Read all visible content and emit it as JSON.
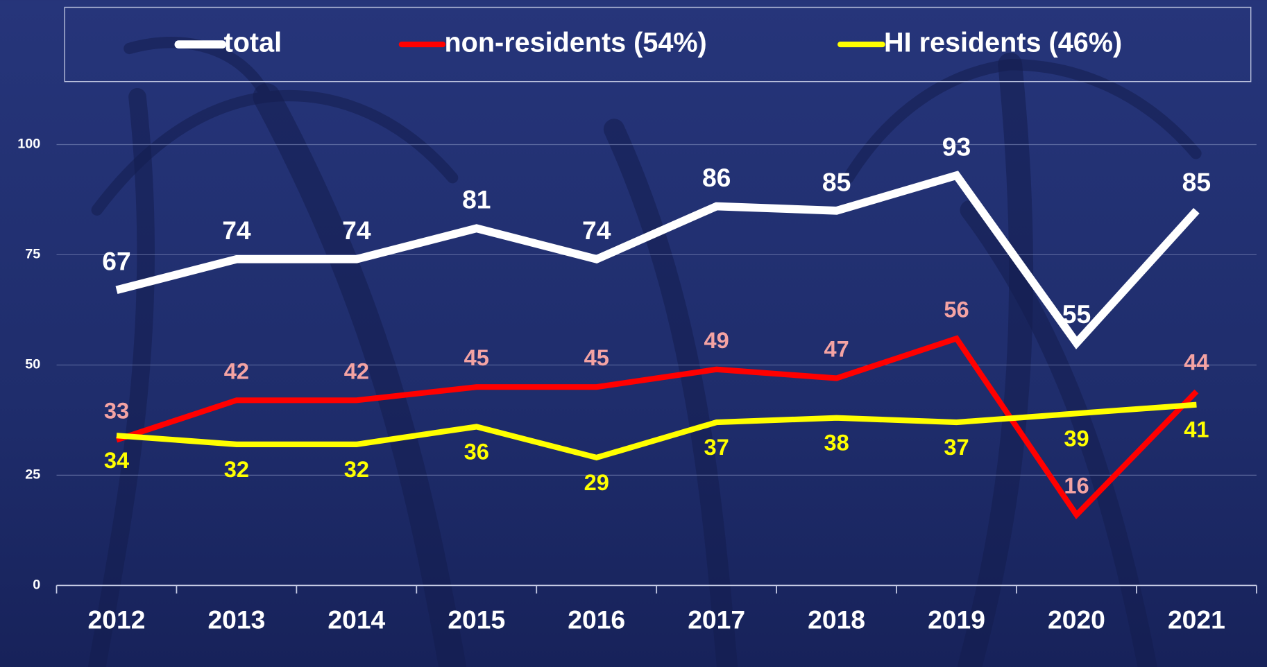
{
  "chart_data": {
    "type": "line",
    "categories": [
      "2012",
      "2013",
      "2014",
      "2015",
      "2016",
      "2017",
      "2018",
      "2019",
      "2020",
      "2021"
    ],
    "series": [
      {
        "name": "total",
        "color": "#ffffff",
        "label_color": "#ffffff",
        "values": [
          67,
          74,
          74,
          81,
          74,
          86,
          85,
          93,
          55,
          85
        ]
      },
      {
        "name": "non-residents (54%)",
        "color": "#ff0000",
        "label_color": "#f4a3a3",
        "values": [
          33,
          42,
          42,
          45,
          45,
          49,
          47,
          56,
          16,
          44
        ]
      },
      {
        "name": "HI residents (46%)",
        "color": "#ffff00",
        "label_color": "#ffff00",
        "values": [
          34,
          32,
          32,
          36,
          29,
          37,
          38,
          37,
          39,
          41
        ]
      }
    ],
    "ylim": [
      0,
      100
    ],
    "yticks": [
      0,
      25,
      50,
      75,
      100
    ],
    "grid": true,
    "legend": "top"
  }
}
